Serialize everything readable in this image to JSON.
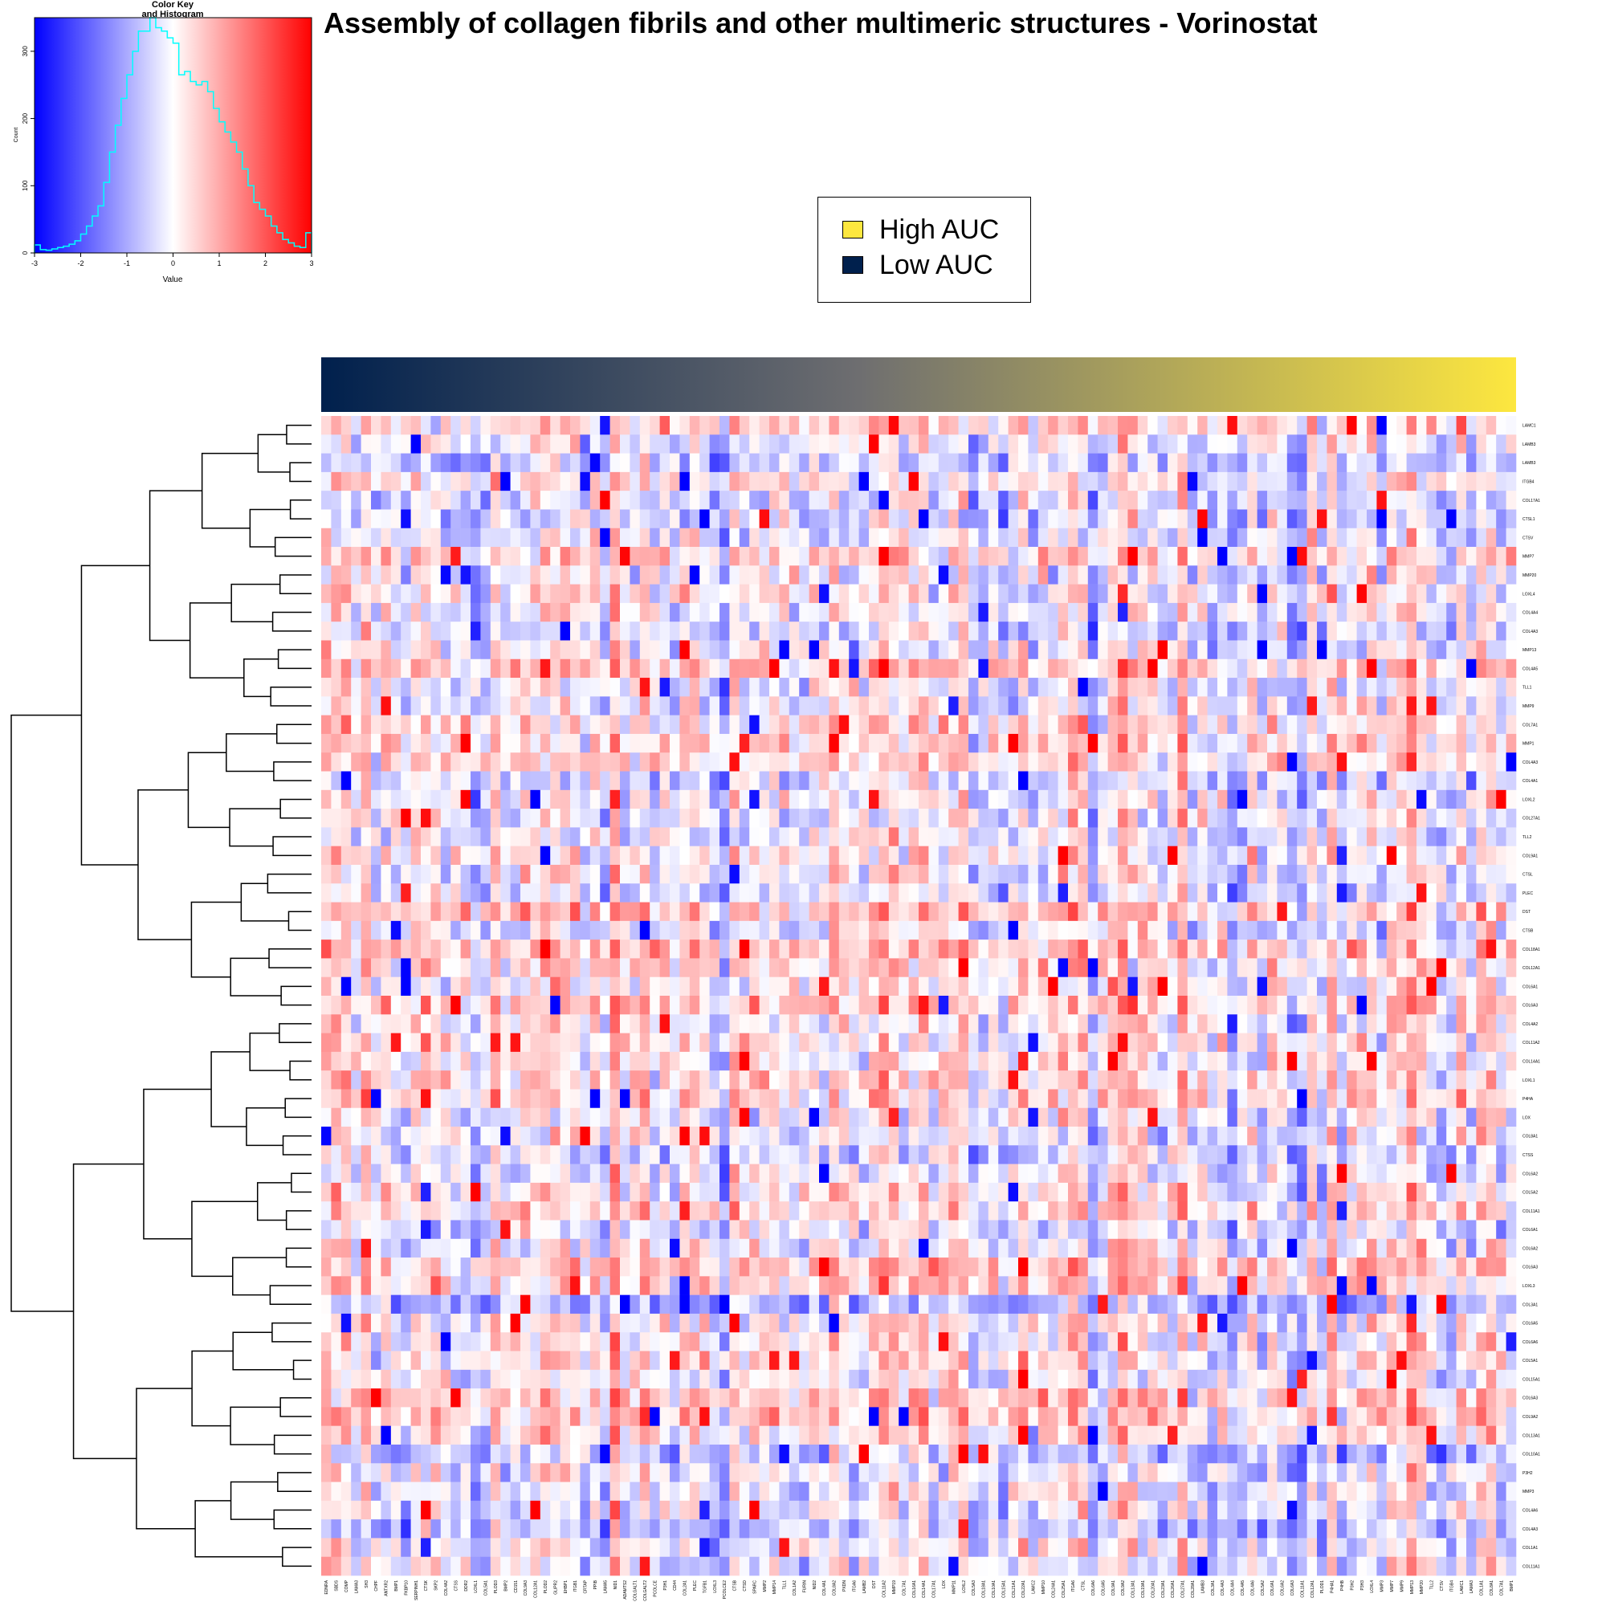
{
  "title": "Assembly of collagen fibrils and other multimeric structures - Vorinostat",
  "legend": {
    "items": [
      {
        "label": "High AUC",
        "color": "#fde73f"
      },
      {
        "label": "Low AUC",
        "color": "#00204d"
      }
    ]
  },
  "color_key": {
    "title_line1": "Color Key",
    "title_line2": "and Histogram",
    "xlabel": "Value",
    "ylabel": "Count",
    "x_ticks": [
      "-3",
      "-2",
      "-1",
      "0",
      "1",
      "2",
      "3"
    ],
    "y_ticks": [
      "0",
      "100",
      "200",
      "300"
    ],
    "low_color": "#0000ff",
    "mid_color": "#ffffff",
    "high_color": "#ff0000",
    "histogram_color": "#00ffff"
  },
  "chart_data": [
    {
      "type": "bar",
      "title": "Color Key and Histogram",
      "xlabel": "Value",
      "ylabel": "Count",
      "xlim": [
        -3,
        3
      ],
      "ylim": [
        0,
        350
      ],
      "bin_width": 0.125,
      "x": [
        -3.0,
        -2.875,
        -2.75,
        -2.625,
        -2.5,
        -2.375,
        -2.25,
        -2.125,
        -2.0,
        -1.875,
        -1.75,
        -1.625,
        -1.5,
        -1.375,
        -1.25,
        -1.125,
        -1.0,
        -0.875,
        -0.75,
        -0.625,
        -0.5,
        -0.375,
        -0.25,
        -0.125,
        0.0,
        0.125,
        0.25,
        0.375,
        0.5,
        0.625,
        0.75,
        0.875,
        1.0,
        1.125,
        1.25,
        1.375,
        1.5,
        1.625,
        1.75,
        1.875,
        2.0,
        2.125,
        2.25,
        2.375,
        2.5,
        2.625,
        2.75,
        2.875
      ],
      "values": [
        12,
        5,
        4,
        6,
        8,
        10,
        13,
        18,
        28,
        40,
        55,
        70,
        105,
        150,
        190,
        230,
        265,
        300,
        330,
        330,
        350,
        335,
        330,
        320,
        312,
        265,
        270,
        255,
        250,
        255,
        240,
        215,
        195,
        180,
        165,
        150,
        125,
        100,
        75,
        65,
        55,
        40,
        30,
        20,
        15,
        10,
        8,
        30
      ]
    },
    {
      "type": "heatmap",
      "title": "Assembly of collagen fibrils and other multimeric structures - Vorinostat",
      "color_scale": {
        "low": "#0000ff",
        "mid": "#ffffff",
        "high": "#ff0000",
        "range": [
          -3,
          3
        ]
      },
      "column_annotation": {
        "low_label": "Low AUC",
        "high_label": "High AUC",
        "low_color": "#00204d",
        "high_color": "#fde73f"
      },
      "rows": [
        "LAMC1",
        "LAMB3",
        "LAMB3",
        "ITGB4",
        "COL17A1",
        "CTSL1",
        "CTSV",
        "MMP7",
        "MMP20",
        "LOXL4",
        "COL4A4",
        "COL4A3",
        "MMP13",
        "COL4A5",
        "TLL1",
        "MMP9",
        "COL7A1",
        "MMP1",
        "COL4A3",
        "COL4A1",
        "LOXL2",
        "COL27A1",
        "TLL2",
        "COL9A1",
        "CTSL",
        "PLEC",
        "DST",
        "CTSB",
        "COL18A1",
        "COL12A1",
        "COL6A1",
        "COL6A3",
        "COL4A2",
        "COL11A2",
        "COL14A1",
        "LOXL1",
        "P4HA",
        "LOX",
        "COL8A1",
        "CTSS",
        "COL6A2",
        "COL5A2",
        "COL11A1",
        "COL6A1",
        "COL6A2",
        "COL6A3",
        "LOXL3",
        "COL3A1",
        "COL6A5",
        "COL6A6",
        "COL5A1",
        "COL15A1",
        "COL6A3",
        "COL9A2",
        "COL13A1",
        "COL10A1",
        "P3H2",
        "MMP3",
        "COL4A6",
        "COL4A3",
        "COL1A1",
        "COL11A1"
      ],
      "columns": [
        "EDNRA",
        "SBDS",
        "COMP",
        "LAMA3",
        "SH3",
        "CHPF",
        "ANTXR2",
        "BMP1",
        "FKBP10",
        "SERPINH1",
        "CTSK",
        "SKP2",
        "COL4A2",
        "CTSS",
        "DDR2",
        "LOXL1",
        "COL5A1",
        "PLOD3",
        "BMP2",
        "CD151",
        "COL9A3",
        "COL12A1",
        "PLOD2",
        "GLIPR2",
        "EHBP1",
        "ITGB1",
        "CRTAP",
        "PPIB",
        "LAMA5",
        "NID1",
        "ADAMTS2",
        "COLGALT1",
        "COLGALT2",
        "PCOLCE",
        "P3H1",
        "CD44",
        "COL2A1",
        "PLEC",
        "TGFB1",
        "LOXL3",
        "PCOLCE2",
        "CTSB",
        "CTSD",
        "SPARC",
        "MMP2",
        "MMP14",
        "TLL1",
        "COL1A2",
        "FURIN",
        "NID2",
        "COL4A1",
        "COL8A2",
        "PXDN",
        "ITGA6",
        "LAMB2",
        "DST",
        "COL11A2",
        "MMP19",
        "COL7A1",
        "COL16A1",
        "COL14A1",
        "COL17A1",
        "LOX",
        "MMP11",
        "LOXL2",
        "COL5A3",
        "COL18A1",
        "COL10A1",
        "COL15A1",
        "COL21A1",
        "COL22A1",
        "LAMC2",
        "MMP10",
        "COL24A1",
        "COL25A1",
        "ITGA6",
        "CTSL",
        "COL6A6",
        "COL6A5",
        "COL9A1",
        "COL9A2",
        "COL13A1",
        "COL19A1",
        "COL20A1",
        "COL23A1",
        "COL26A1",
        "COL27A1",
        "COL28A1",
        "LAMB3",
        "COL3A1",
        "COL4A3",
        "COL4A4",
        "COL4A5",
        "COL4A6",
        "COL5A2",
        "COL6A1",
        "COL6A2",
        "COL6A3",
        "COL11A1",
        "COL12A1",
        "PLOD1",
        "P4HA1",
        "P4HB",
        "P3H2",
        "P3H3",
        "LOXL4",
        "MMP3",
        "MMP7",
        "MMP9",
        "MMP13",
        "MMP20",
        "TLL2",
        "CTSV",
        "ITGB4",
        "LAMC1",
        "LAMA3",
        "COL1A1",
        "COL8A1",
        "COL7A1",
        "BMP1"
      ]
    }
  ]
}
